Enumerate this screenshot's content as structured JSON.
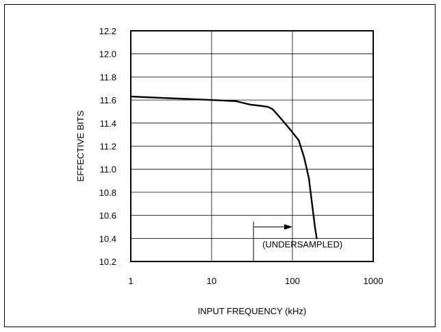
{
  "chart_data": {
    "type": "line",
    "title": "",
    "xlabel": "INPUT FREQUENCY (kHz)",
    "ylabel": "EFFECTIVE BITS",
    "x_scale": "log",
    "xlim": [
      1,
      1000
    ],
    "ylim": [
      10.2,
      12.2
    ],
    "x_ticks": [
      1,
      10,
      100,
      1000
    ],
    "x_tick_labels": [
      "1",
      "10",
      "100",
      "1000"
    ],
    "y_ticks": [
      10.2,
      10.4,
      10.6,
      10.8,
      11.0,
      11.2,
      11.4,
      11.6,
      11.8,
      12.0,
      12.2
    ],
    "y_tick_labels": [
      "10.2",
      "10.4",
      "10.6",
      "10.8",
      "11.0",
      "11.2",
      "11.4",
      "11.6",
      "11.8",
      "12.0",
      "12.2"
    ],
    "grid": true,
    "series": [
      {
        "x": [
          1,
          10,
          20,
          23,
          30,
          40,
          50,
          57,
          70,
          85,
          100,
          120,
          140,
          160,
          175,
          190,
          200
        ],
        "y": [
          11.63,
          11.6,
          11.59,
          11.58,
          11.56,
          11.55,
          11.54,
          11.52,
          11.45,
          11.38,
          11.32,
          11.25,
          11.1,
          10.92,
          10.7,
          10.5,
          10.4
        ]
      }
    ],
    "annotations": [
      {
        "text": "(UNDERSAMPLED)",
        "arrow_from_x": 33,
        "arrow_to_x": 100,
        "arrow_y": 10.44
      }
    ]
  }
}
